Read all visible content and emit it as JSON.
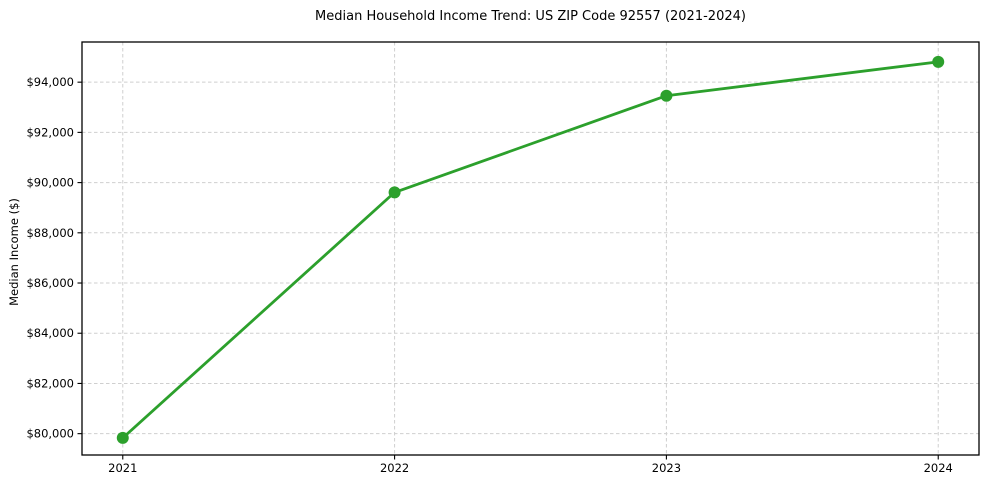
{
  "page": {
    "background_color": "#ffffff"
  },
  "chart_data": {
    "type": "line",
    "title": "Median Household Income Trend: US ZIP Code 92557 (2021-2024)",
    "xlabel": "",
    "ylabel": "Median Income ($)",
    "x": [
      2021,
      2022,
      2023,
      2024
    ],
    "x_tick_labels": [
      "2021",
      "2022",
      "2023",
      "2024"
    ],
    "values": [
      79830,
      89610,
      93460,
      94810
    ],
    "y_ticks": [
      80000,
      82000,
      84000,
      86000,
      88000,
      90000,
      92000,
      94000
    ],
    "y_tick_labels": [
      "$80,000",
      "$82,000",
      "$84,000",
      "$86,000",
      "$88,000",
      "$90,000",
      "$92,000",
      "$94,000"
    ],
    "xlim": [
      2020.85,
      2024.15
    ],
    "ylim": [
      79150,
      95600
    ],
    "line_color": "#2ca02c",
    "marker": "circle",
    "grid": {
      "visible": true,
      "style": "dashed",
      "color": "#cfcfcf"
    },
    "spine_color": "#000000",
    "legend": "none"
  }
}
